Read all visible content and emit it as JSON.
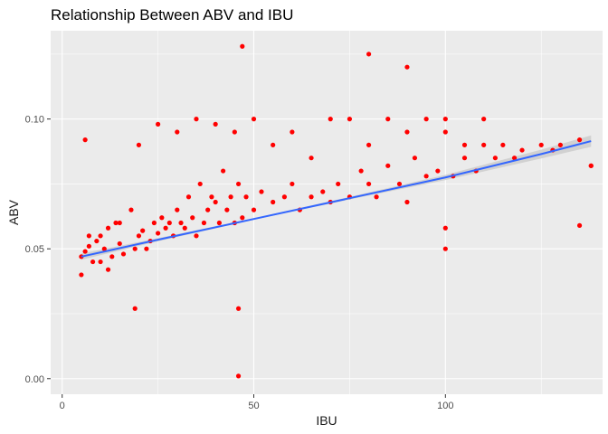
{
  "chart_data": {
    "type": "scatter",
    "title": "Relationship Between ABV and IBU",
    "xlabel": "IBU",
    "ylabel": "ABV",
    "xlim": [
      -3,
      141
    ],
    "ylim": [
      -0.006,
      0.134
    ],
    "x_ticks": [
      0,
      50,
      100
    ],
    "x_tick_labels": [
      "0",
      "50",
      "100"
    ],
    "y_ticks": [
      0.0,
      0.05,
      0.1
    ],
    "y_tick_labels": [
      "0.00",
      "0.05",
      "0.10"
    ],
    "grid": true,
    "legend": "none",
    "series": [
      {
        "color": "#ff0000",
        "x": [
          5,
          6,
          6,
          7,
          7,
          8,
          9,
          10,
          11,
          12,
          12,
          13,
          14,
          15,
          16,
          18,
          19,
          20,
          21,
          22,
          23,
          24,
          25,
          26,
          27,
          28,
          29,
          30,
          31,
          32,
          33,
          34,
          35,
          36,
          37,
          38,
          39,
          40,
          41,
          42,
          43,
          44,
          45,
          46,
          47,
          48,
          50,
          52,
          55,
          58,
          60,
          62,
          65,
          68,
          70,
          72,
          75,
          78,
          80,
          82,
          85,
          88,
          90,
          92,
          95,
          98,
          100,
          102,
          105,
          108,
          110,
          113,
          115,
          118,
          120,
          125,
          128,
          130,
          135,
          138,
          10,
          15,
          20,
          25,
          30,
          35,
          40,
          45,
          50,
          55,
          60,
          65,
          70,
          75,
          80,
          85,
          90,
          95,
          100,
          105,
          110,
          47,
          80,
          90,
          46,
          46,
          135,
          138,
          100,
          100,
          5,
          19
        ],
        "y": [
          0.047,
          0.092,
          0.049,
          0.055,
          0.051,
          0.045,
          0.053,
          0.055,
          0.05,
          0.042,
          0.058,
          0.047,
          0.06,
          0.052,
          0.048,
          0.065,
          0.05,
          0.055,
          0.057,
          0.05,
          0.053,
          0.06,
          0.056,
          0.062,
          0.058,
          0.06,
          0.055,
          0.065,
          0.06,
          0.058,
          0.07,
          0.062,
          0.055,
          0.075,
          0.06,
          0.065,
          0.07,
          0.068,
          0.06,
          0.08,
          0.065,
          0.07,
          0.06,
          0.075,
          0.062,
          0.07,
          0.065,
          0.072,
          0.068,
          0.07,
          0.075,
          0.065,
          0.07,
          0.072,
          0.068,
          0.075,
          0.07,
          0.08,
          0.075,
          0.07,
          0.082,
          0.075,
          0.068,
          0.085,
          0.078,
          0.08,
          0.1,
          0.078,
          0.085,
          0.08,
          0.09,
          0.085,
          0.09,
          0.085,
          0.088,
          0.09,
          0.088,
          0.09,
          0.092,
          0.082,
          0.045,
          0.06,
          0.09,
          0.098,
          0.095,
          0.1,
          0.098,
          0.095,
          0.1,
          0.09,
          0.095,
          0.085,
          0.1,
          0.1,
          0.09,
          0.1,
          0.095,
          0.1,
          0.095,
          0.09,
          0.1,
          0.128,
          0.125,
          0.12,
          0.027,
          0.001,
          0.059,
          0.082,
          0.05,
          0.058,
          0.04,
          0.027
        ]
      }
    ],
    "trend": {
      "method": "linear",
      "color": "#3366ff",
      "band_color": "#cccccc",
      "x": [
        5,
        25,
        50,
        75,
        100,
        125,
        138
      ],
      "y": [
        0.047,
        0.0535,
        0.0615,
        0.0695,
        0.0775,
        0.0865,
        0.0915
      ],
      "se_lower": [
        0.0458,
        0.0529,
        0.0612,
        0.069,
        0.0765,
        0.0848,
        0.0893
      ],
      "se_upper": [
        0.0482,
        0.0541,
        0.0618,
        0.07,
        0.0785,
        0.0882,
        0.0937
      ]
    }
  }
}
